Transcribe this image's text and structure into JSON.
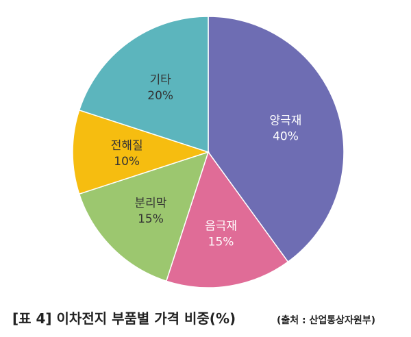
{
  "chart_data": {
    "type": "pie",
    "categories": [
      "양극재",
      "음극재",
      "분리막",
      "전해질",
      "기타"
    ],
    "values": [
      40,
      15,
      15,
      10,
      20
    ],
    "value_labels": [
      "40%",
      "15%",
      "15%",
      "10%",
      "20%"
    ],
    "colors": [
      "#6e6db3",
      "#e06c97",
      "#9cc76f",
      "#f6bd10",
      "#5cb5bd"
    ],
    "title": "[표 4] 이차전지 부품별 가격 비중(%)",
    "source": "(출처 : 산업통상자원부)"
  }
}
